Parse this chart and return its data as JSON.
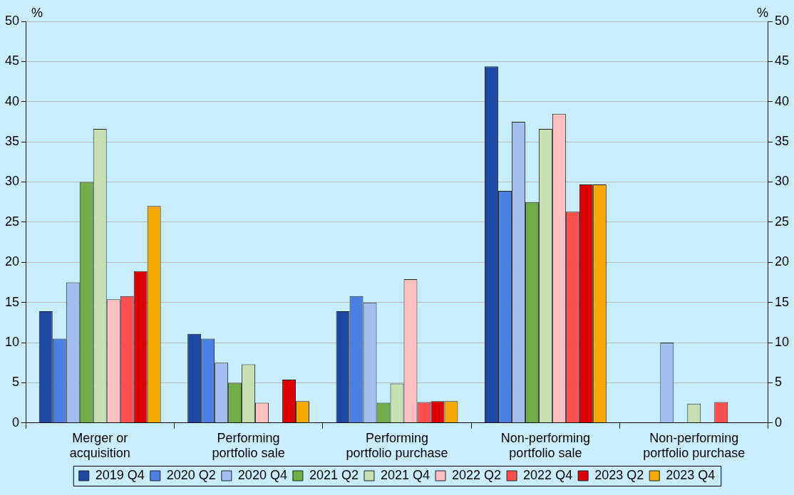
{
  "chart_data": {
    "type": "bar",
    "ylabel": "%",
    "y2label": "%",
    "categories": [
      "Merger or acquisition",
      "Performing portfolio sale",
      "Performing portfolio purchase",
      "Non-performing portfolio sale",
      "Non-performing portfolio purchase"
    ],
    "series": [
      {
        "name": "2019 Q4",
        "color": "#1c4aa2",
        "values": [
          13.9,
          11.1,
          13.9,
          44.4,
          0
        ]
      },
      {
        "name": "2020 Q2",
        "color": "#4a80e0",
        "values": [
          10.5,
          10.5,
          15.8,
          28.9,
          0
        ]
      },
      {
        "name": "2020 Q4",
        "color": "#a4bdef",
        "values": [
          17.5,
          7.5,
          15.0,
          37.5,
          10.0
        ]
      },
      {
        "name": "2021 Q2",
        "color": "#70ad47",
        "values": [
          30.0,
          5.0,
          2.5,
          27.5,
          0
        ]
      },
      {
        "name": "2021 Q4",
        "color": "#c6e0b4",
        "values": [
          36.6,
          7.3,
          4.9,
          36.6,
          2.4
        ]
      },
      {
        "name": "2022 Q2",
        "color": "#ffc0c0",
        "values": [
          15.4,
          2.5,
          17.9,
          38.5,
          0
        ]
      },
      {
        "name": "2022 Q4",
        "color": "#ff5050",
        "values": [
          15.8,
          0,
          2.6,
          26.3,
          2.6
        ]
      },
      {
        "name": "2023 Q2",
        "color": "#dc0000",
        "values": [
          18.9,
          5.4,
          2.7,
          29.7,
          0
        ]
      },
      {
        "name": "2023 Q4",
        "color": "#f5a800",
        "values": [
          27.0,
          2.7,
          2.7,
          29.7,
          0
        ]
      }
    ],
    "ylim": [
      0,
      50
    ],
    "yticks": [
      0,
      5,
      10,
      15,
      20,
      25,
      30,
      35,
      40,
      45,
      50
    ],
    "y2lim": [
      0,
      50
    ],
    "y2ticks": [
      0,
      5,
      10,
      15,
      20,
      25,
      30,
      35,
      40,
      45,
      50
    ],
    "grid": "y",
    "legend": "bottom"
  }
}
